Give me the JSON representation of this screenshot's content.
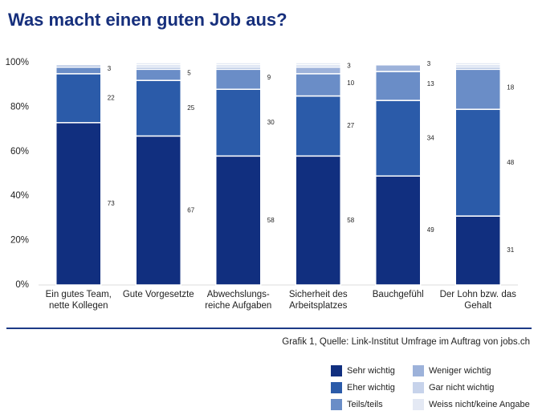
{
  "chart_data": {
    "type": "stacked_bar",
    "title": "Was macht einen guten Job aus?",
    "source": "Grafik 1, Quelle: Link-Institut Umfrage im Auftrag von jobs.ch",
    "categories": [
      "Ein gutes Team, nette Kollegen",
      "Gute Vorgesetzte",
      "Abwechslungs-reiche Aufgaben",
      "Sicherheit des Arbeitsplatzes",
      "Bauchgefühl",
      "Der Lohn bzw. das Gehalt"
    ],
    "series": [
      {
        "name": "Sehr wichtig",
        "color": "#112f7f",
        "values": [
          73,
          67,
          58,
          58,
          49,
          31
        ]
      },
      {
        "name": "Eher wichtig",
        "color": "#2b5ba9",
        "values": [
          22,
          25,
          30,
          27,
          34,
          48
        ]
      },
      {
        "name": "Teils/teils",
        "color": "#6a8dc7",
        "values": [
          3,
          5,
          9,
          10,
          13,
          18
        ]
      },
      {
        "name": "Weniger wichtig",
        "color": "#9db2da",
        "values": [
          1,
          1,
          1,
          3,
          3,
          1
        ],
        "value_labels": [
          null,
          null,
          null,
          "3",
          "3",
          null
        ]
      },
      {
        "name": "Gar nicht wichtig",
        "color": "#c7d3eb",
        "values": [
          0.5,
          1,
          1,
          1,
          0.5,
          1
        ],
        "value_labels": [
          null,
          null,
          null,
          null,
          null,
          null
        ]
      },
      {
        "name": "Weiss nicht/keine Angabe",
        "color": "#e4e9f4",
        "values": [
          0.5,
          1,
          1,
          1,
          0.5,
          1
        ],
        "value_labels": [
          null,
          null,
          null,
          null,
          null,
          null
        ]
      }
    ],
    "ylim": [
      0,
      100
    ],
    "yticks": [
      {
        "value": 0,
        "label": "0%"
      },
      {
        "value": 20,
        "label": "20%"
      },
      {
        "value": 40,
        "label": "40%"
      },
      {
        "value": 60,
        "label": "60%"
      },
      {
        "value": 80,
        "label": "80%"
      },
      {
        "value": 100,
        "label": "100%"
      }
    ],
    "grid": false
  }
}
